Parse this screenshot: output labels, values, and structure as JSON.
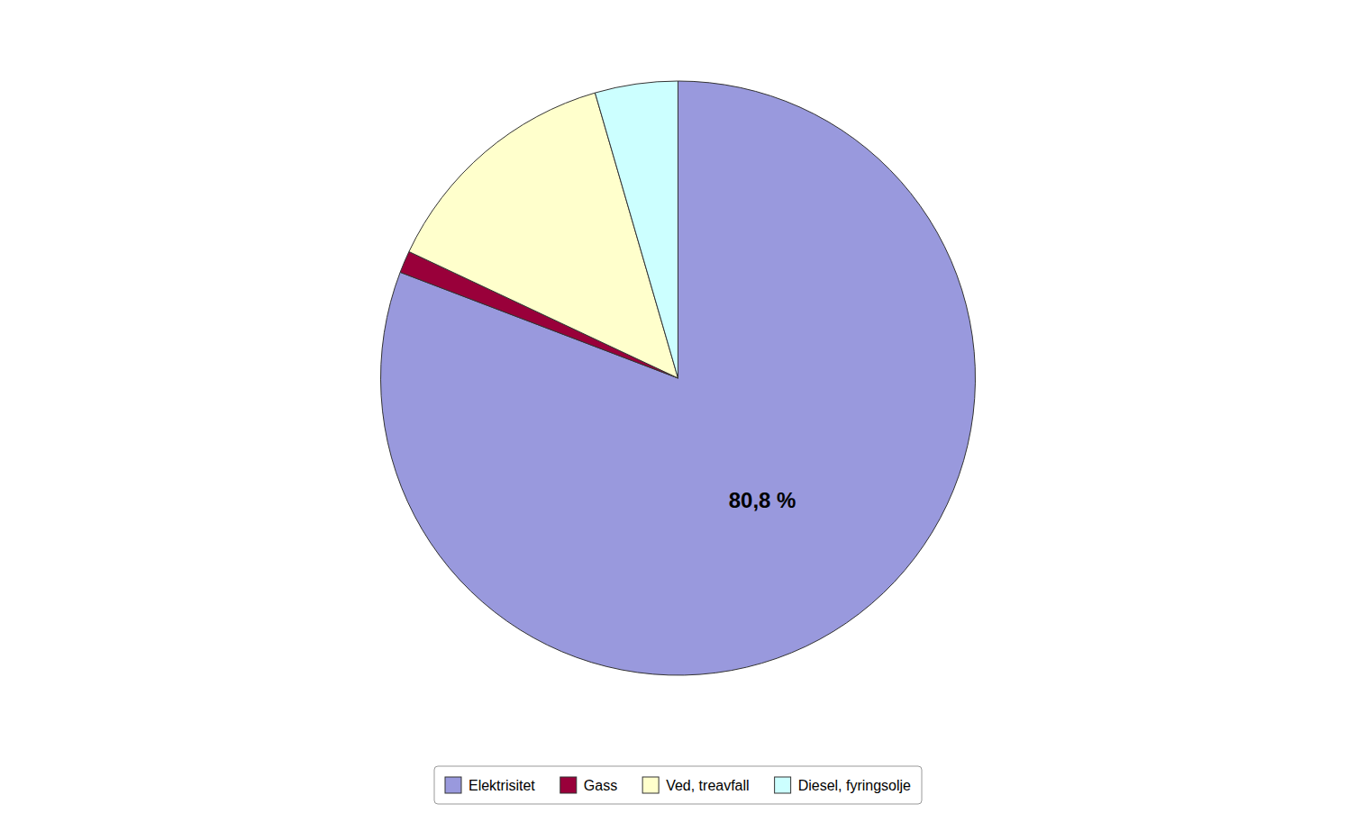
{
  "chart_data": {
    "type": "pie",
    "categories": [
      "Elektrisitet",
      "Gass",
      "Ved, treavfall",
      "Diesel, fyringsolje"
    ],
    "values": [
      80.8,
      1.2,
      13.5,
      4.5
    ],
    "colors": [
      "#9999dd",
      "#99003a",
      "#ffffcc",
      "#ccffff"
    ],
    "value_labels": [
      "80,8 %",
      null,
      null,
      null
    ],
    "legend": "bottom"
  }
}
